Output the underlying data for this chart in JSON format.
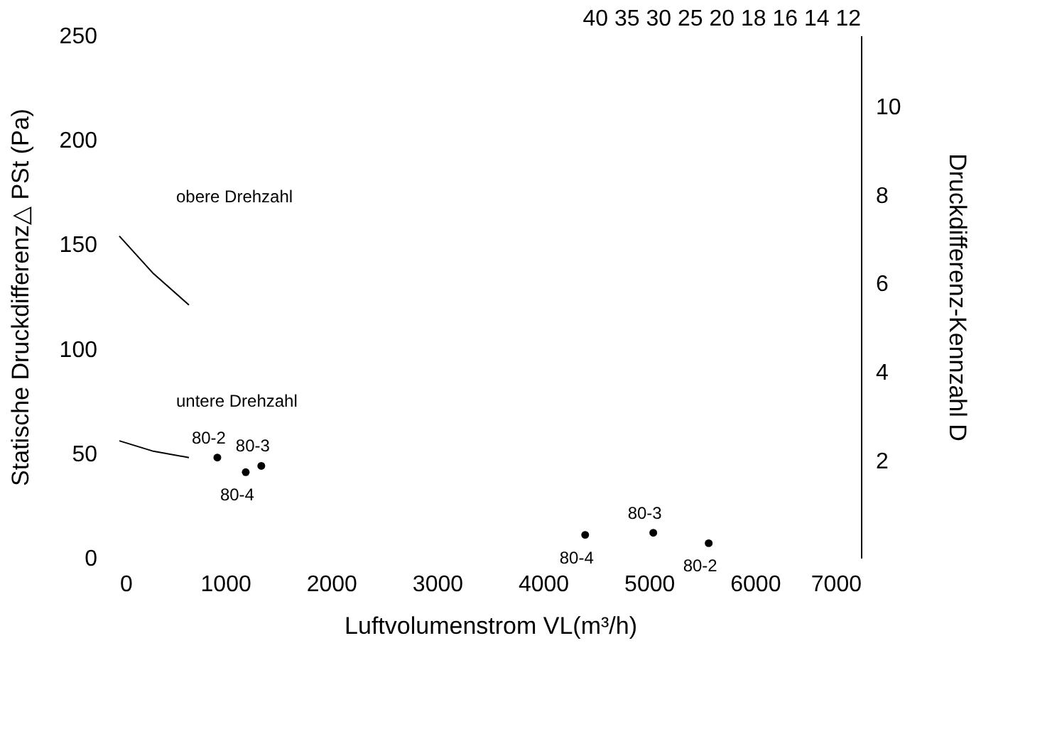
{
  "chart_data": {
    "type": "scatter",
    "xlabel": "Luftvolumenstrom VL(m³/h)",
    "ylabel": "Statische Druckdifferenz△ PSt (Pa)",
    "y2label": "Druckdifferenz-Kennzahl D",
    "xlim": [
      0,
      7000
    ],
    "xticks": [
      0,
      1000,
      2000,
      3000,
      4000,
      5000,
      6000,
      7000
    ],
    "ylim": [
      0,
      250
    ],
    "yticks": [
      0,
      50,
      100,
      150,
      200,
      250
    ],
    "y2lim": [
      -0.2,
      11.6
    ],
    "y2ticks": [
      2,
      4,
      6,
      8,
      10
    ],
    "grid": false,
    "marker": "circle",
    "series": [
      {
        "type": "scatter",
        "color": "#000000",
        "x": [
          925,
          1193,
          1340,
          4397,
          5040,
          5563
        ],
        "values": [
          48,
          41,
          44,
          11,
          12,
          7
        ],
        "value_labels": [
          "80-2",
          "80-4",
          "80-3",
          "80-4",
          "80-3",
          "80-2"
        ]
      },
      {
        "type": "line",
        "name": "obere Drehzahl",
        "color": "#000000",
        "marker": "none",
        "x": [
          0,
          322,
          657
        ],
        "values": [
          154,
          136,
          121
        ]
      },
      {
        "type": "line",
        "name": "untere Drehzahl",
        "color": "#000000",
        "marker": "none",
        "x": [
          0,
          322,
          657
        ],
        "values": [
          56,
          51,
          48
        ]
      }
    ],
    "annotations": [
      "40 35 30 25   20 18   16 14   12"
    ]
  }
}
